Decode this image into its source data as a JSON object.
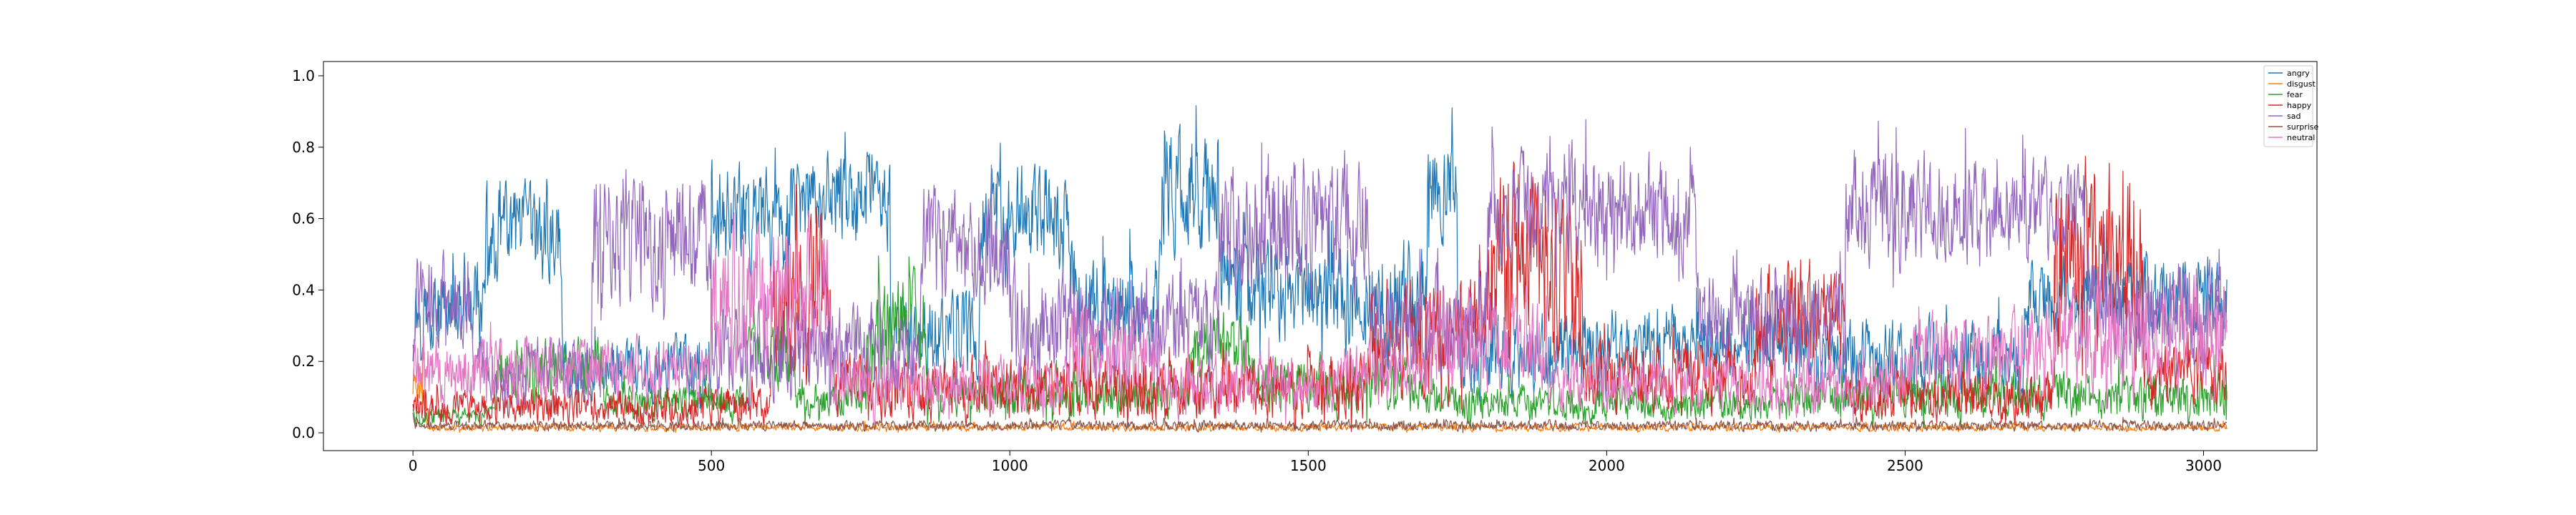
{
  "chart_data": {
    "type": "line",
    "title": "",
    "xlabel": "",
    "ylabel": "",
    "xlim": [
      -150,
      3190
    ],
    "ylim": [
      -0.05,
      1.04
    ],
    "n_points": 3040,
    "xticks": [
      0,
      500,
      1000,
      1500,
      2000,
      2500,
      3000
    ],
    "xtick_labels": [
      "0",
      "500",
      "1000",
      "1500",
      "2000",
      "2500",
      "3000"
    ],
    "yticks": [
      0.0,
      0.2,
      0.4,
      0.6,
      0.8,
      1.0
    ],
    "ytick_labels": [
      "0.0",
      "0.2",
      "0.4",
      "0.6",
      "0.8",
      "1.0"
    ],
    "grid": false,
    "legend_position": "top-right",
    "series": [
      {
        "name": "angry",
        "color": "#1f77b4",
        "segments": [
          {
            "x0": 0,
            "x1": 120,
            "low": 0.2,
            "high": 0.5
          },
          {
            "x0": 120,
            "x1": 250,
            "low": 0.35,
            "high": 0.75
          },
          {
            "x0": 250,
            "x1": 500,
            "low": 0.05,
            "high": 0.3
          },
          {
            "x0": 500,
            "x1": 650,
            "low": 0.4,
            "high": 0.8
          },
          {
            "x0": 650,
            "x1": 800,
            "low": 0.45,
            "high": 0.85
          },
          {
            "x0": 800,
            "x1": 950,
            "low": 0.1,
            "high": 0.45
          },
          {
            "x0": 950,
            "x1": 1100,
            "low": 0.4,
            "high": 0.8
          },
          {
            "x0": 1100,
            "x1": 1250,
            "low": 0.15,
            "high": 0.55
          },
          {
            "x0": 1250,
            "x1": 1350,
            "low": 0.45,
            "high": 0.9
          },
          {
            "x0": 1350,
            "x1": 1500,
            "low": 0.2,
            "high": 0.6
          },
          {
            "x0": 1500,
            "x1": 1700,
            "low": 0.15,
            "high": 0.6
          },
          {
            "x0": 1700,
            "x1": 1750,
            "low": 0.5,
            "high": 0.9
          },
          {
            "x0": 1750,
            "x1": 2000,
            "low": 0.05,
            "high": 0.4
          },
          {
            "x0": 2000,
            "x1": 2350,
            "low": 0.1,
            "high": 0.4
          },
          {
            "x0": 2350,
            "x1": 2700,
            "low": 0.05,
            "high": 0.35
          },
          {
            "x0": 2700,
            "x1": 3040,
            "low": 0.2,
            "high": 0.55
          }
        ]
      },
      {
        "name": "disgust",
        "color": "#ff7f0e",
        "segments": [
          {
            "x0": 0,
            "x1": 20,
            "low": 0.05,
            "high": 0.25
          },
          {
            "x0": 20,
            "x1": 3040,
            "low": 0.0,
            "high": 0.03
          }
        ]
      },
      {
        "name": "fear",
        "color": "#2ca02c",
        "segments": [
          {
            "x0": 0,
            "x1": 140,
            "low": 0.01,
            "high": 0.08
          },
          {
            "x0": 140,
            "x1": 320,
            "low": 0.05,
            "high": 0.3
          },
          {
            "x0": 320,
            "x1": 560,
            "low": 0.02,
            "high": 0.15
          },
          {
            "x0": 560,
            "x1": 640,
            "low": 0.08,
            "high": 0.35
          },
          {
            "x0": 640,
            "x1": 760,
            "low": 0.02,
            "high": 0.15
          },
          {
            "x0": 760,
            "x1": 860,
            "low": 0.1,
            "high": 0.5
          },
          {
            "x0": 860,
            "x1": 1300,
            "low": 0.02,
            "high": 0.2
          },
          {
            "x0": 1300,
            "x1": 1400,
            "low": 0.08,
            "high": 0.4
          },
          {
            "x0": 1400,
            "x1": 1700,
            "low": 0.02,
            "high": 0.25
          },
          {
            "x0": 1700,
            "x1": 2300,
            "low": 0.01,
            "high": 0.15
          },
          {
            "x0": 2300,
            "x1": 3040,
            "low": 0.01,
            "high": 0.2
          }
        ]
      },
      {
        "name": "happy",
        "color": "#d62728",
        "segments": [
          {
            "x0": 0,
            "x1": 600,
            "low": 0.0,
            "high": 0.15
          },
          {
            "x0": 600,
            "x1": 700,
            "low": 0.05,
            "high": 0.7
          },
          {
            "x0": 700,
            "x1": 1600,
            "low": 0.0,
            "high": 0.25
          },
          {
            "x0": 1600,
            "x1": 1800,
            "low": 0.05,
            "high": 0.5
          },
          {
            "x0": 1800,
            "x1": 1960,
            "low": 0.05,
            "high": 0.85
          },
          {
            "x0": 1960,
            "x1": 2250,
            "low": 0.02,
            "high": 0.3
          },
          {
            "x0": 2250,
            "x1": 2400,
            "low": 0.1,
            "high": 0.55
          },
          {
            "x0": 2400,
            "x1": 2750,
            "low": 0.0,
            "high": 0.2
          },
          {
            "x0": 2750,
            "x1": 2900,
            "low": 0.05,
            "high": 0.9
          },
          {
            "x0": 2900,
            "x1": 3040,
            "low": 0.02,
            "high": 0.3
          }
        ]
      },
      {
        "name": "sad",
        "color": "#9467bd",
        "segments": [
          {
            "x0": 0,
            "x1": 100,
            "low": 0.2,
            "high": 0.55
          },
          {
            "x0": 100,
            "x1": 300,
            "low": 0.05,
            "high": 0.3
          },
          {
            "x0": 300,
            "x1": 500,
            "low": 0.3,
            "high": 0.8
          },
          {
            "x0": 500,
            "x1": 850,
            "low": 0.05,
            "high": 0.4
          },
          {
            "x0": 850,
            "x1": 1000,
            "low": 0.3,
            "high": 0.75
          },
          {
            "x0": 1000,
            "x1": 1350,
            "low": 0.1,
            "high": 0.5
          },
          {
            "x0": 1350,
            "x1": 1600,
            "low": 0.3,
            "high": 0.85
          },
          {
            "x0": 1600,
            "x1": 1800,
            "low": 0.1,
            "high": 0.5
          },
          {
            "x0": 1800,
            "x1": 2150,
            "low": 0.4,
            "high": 0.85
          },
          {
            "x0": 2150,
            "x1": 2400,
            "low": 0.1,
            "high": 0.5
          },
          {
            "x0": 2400,
            "x1": 2650,
            "low": 0.4,
            "high": 0.85
          },
          {
            "x0": 2650,
            "x1": 2800,
            "low": 0.45,
            "high": 0.8
          },
          {
            "x0": 2800,
            "x1": 3040,
            "low": 0.15,
            "high": 0.55
          }
        ]
      },
      {
        "name": "surprise",
        "color": "#8c564b",
        "segments": [
          {
            "x0": 0,
            "x1": 3040,
            "low": 0.0,
            "high": 0.04
          }
        ]
      },
      {
        "name": "neutral",
        "color": "#e377c2",
        "segments": [
          {
            "x0": 0,
            "x1": 200,
            "low": 0.05,
            "high": 0.3
          },
          {
            "x0": 200,
            "x1": 500,
            "low": 0.05,
            "high": 0.3
          },
          {
            "x0": 500,
            "x1": 700,
            "low": 0.1,
            "high": 0.7
          },
          {
            "x0": 700,
            "x1": 1100,
            "low": 0.02,
            "high": 0.25
          },
          {
            "x0": 1100,
            "x1": 1250,
            "low": 0.05,
            "high": 0.4
          },
          {
            "x0": 1250,
            "x1": 1550,
            "low": 0.02,
            "high": 0.25
          },
          {
            "x0": 1550,
            "x1": 1700,
            "low": 0.05,
            "high": 0.3
          },
          {
            "x0": 1700,
            "x1": 1900,
            "low": 0.05,
            "high": 0.45
          },
          {
            "x0": 1900,
            "x1": 2500,
            "low": 0.02,
            "high": 0.25
          },
          {
            "x0": 2500,
            "x1": 2750,
            "low": 0.05,
            "high": 0.4
          },
          {
            "x0": 2750,
            "x1": 3040,
            "low": 0.05,
            "high": 0.5
          }
        ]
      }
    ]
  }
}
